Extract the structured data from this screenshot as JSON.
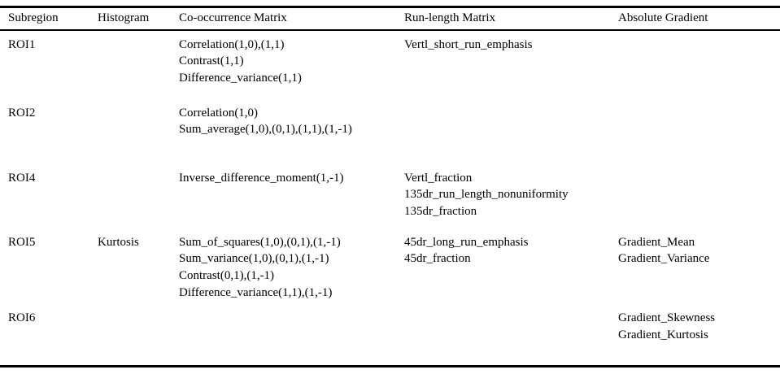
{
  "table": {
    "columns": [
      {
        "label": "Subregion"
      },
      {
        "label": "Histogram"
      },
      {
        "label": "Co-occurrence Matrix"
      },
      {
        "label": "Run-length Matrix"
      },
      {
        "label": "Absolute Gradient"
      }
    ],
    "rows": [
      {
        "cells": [
          [
            "ROI1"
          ],
          [],
          [
            "Correlation(1,0),(1,1)",
            "Contrast(1,1)",
            "Difference_variance(1,1)"
          ],
          [
            "Vertl_short_run_emphasis"
          ],
          []
        ]
      },
      {
        "cells": [
          [
            "ROI2"
          ],
          [],
          [
            "Correlation(1,0)",
            "Sum_average(1,0),(0,1),(1,1),(1,-1)"
          ],
          [],
          []
        ]
      },
      {
        "cells": [
          [
            "ROI4"
          ],
          [],
          [
            "Inverse_difference_moment(1,-1)"
          ],
          [
            "Vertl_fraction",
            "135dr_run_length_nonuniformity",
            "135dr_fraction"
          ],
          []
        ]
      },
      {
        "cells": [
          [
            "ROI5"
          ],
          [
            "Kurtosis"
          ],
          [
            "Sum_of_squares(1,0),(0,1),(1,-1)",
            "Sum_variance(1,0),(0,1),(1,-1)",
            "Contrast(0,1),(1,-1)",
            "Difference_variance(1,1),(1,-1)"
          ],
          [
            "45dr_long_run_emphasis",
            "45dr_fraction"
          ],
          [
            "Gradient_Mean",
            "Gradient_Variance"
          ]
        ]
      },
      {
        "cells": [
          [
            "ROI6"
          ],
          [],
          [],
          [],
          [
            "Gradient_Skewness",
            "Gradient_Kurtosis"
          ]
        ]
      }
    ],
    "text_color": "#000000",
    "rule_color": "#000000"
  }
}
